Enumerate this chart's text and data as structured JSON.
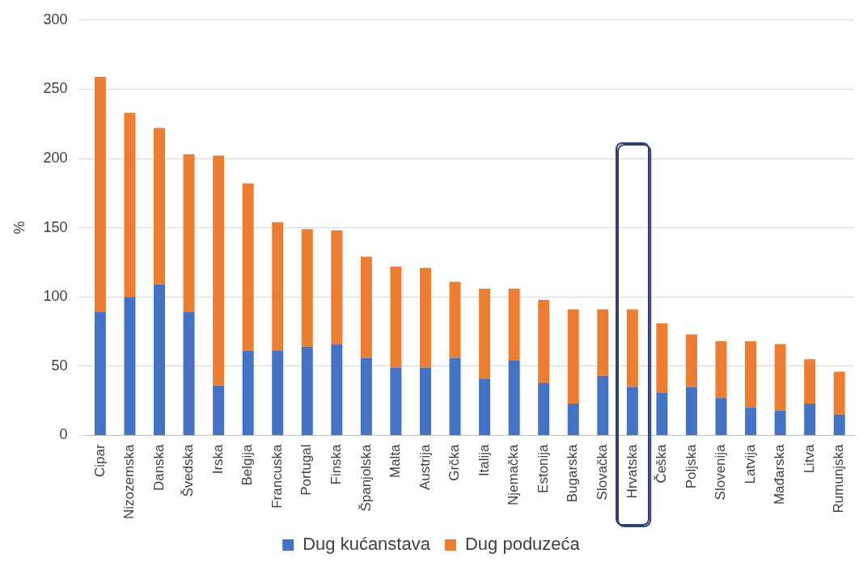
{
  "chart_data": {
    "type": "bar",
    "stacked": true,
    "ylabel": "%",
    "categories": [
      "Cipar",
      "Nizozemska",
      "Danska",
      "Švedska",
      "Irska",
      "Belgija",
      "Francuska",
      "Portugal",
      "Finska",
      "Španjolska",
      "Malta",
      "Austrija",
      "Grčka",
      "Italija",
      "Njemačka",
      "Estonija",
      "Bugarska",
      "Slovačka",
      "Hrvatska",
      "Češka",
      "Poljska",
      "Slovenija",
      "Latvija",
      "Mađarska",
      "Litva",
      "Rumunjska"
    ],
    "series": [
      {
        "name": "Dug kućanstava",
        "color": "#4472c4",
        "values": [
          89,
          100,
          109,
          89,
          36,
          61,
          61,
          64,
          66,
          56,
          49,
          49,
          56,
          41,
          54,
          38,
          23,
          43,
          35,
          31,
          35,
          27,
          20,
          18,
          23,
          15
        ]
      },
      {
        "name": "Dug poduzeća",
        "color": "#ed7d31",
        "values": [
          170,
          133,
          113,
          114,
          166,
          121,
          93,
          85,
          82,
          73,
          73,
          72,
          55,
          65,
          52,
          60,
          68,
          48,
          56,
          50,
          38,
          41,
          48,
          48,
          32,
          31
        ]
      }
    ],
    "ylim": [
      0,
      300
    ],
    "yticks": [
      0,
      50,
      100,
      150,
      200,
      250,
      300
    ],
    "grid": "y",
    "legend": "bottom"
  }
}
